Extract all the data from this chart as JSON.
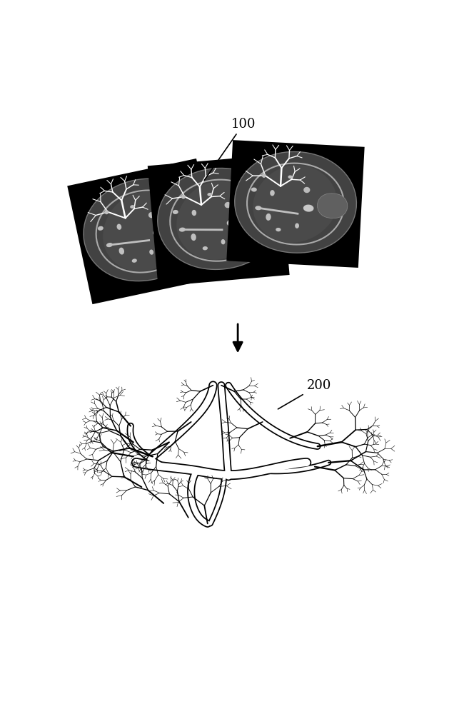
{
  "background_color": "#ffffff",
  "label_100": "100",
  "label_200": "200",
  "fontsize_labels": 13,
  "mri_bg": "#000000",
  "mri_body_color": "#3a3a3a",
  "mri_liver_color": "#555555",
  "mri_vessel_color": "#cccccc",
  "mri_fat_color": "#888888"
}
